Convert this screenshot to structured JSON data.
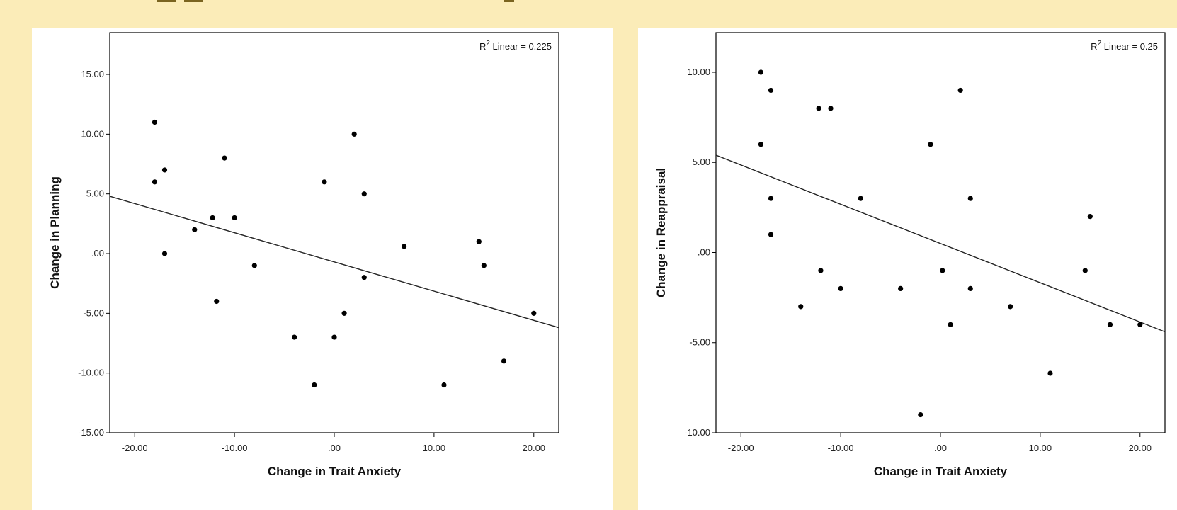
{
  "chart_data": [
    {
      "type": "scatter",
      "xlabel": "Change in Trait Anxiety",
      "ylabel": "Change in Planning",
      "xlim": [
        -22.5,
        22.5
      ],
      "ylim": [
        -15,
        18.5
      ],
      "x_ticks": [
        -20,
        -10,
        0,
        10,
        20
      ],
      "x_tick_labels": [
        "-20.00",
        "-10.00",
        ".00",
        "10.00",
        "20.00"
      ],
      "y_ticks": [
        -15,
        -10,
        -5,
        0,
        5,
        10,
        15
      ],
      "y_tick_labels": [
        "-15.00",
        "-10.00",
        "-5.00",
        ".00",
        "5.00",
        "10.00",
        "15.00"
      ],
      "annotation": {
        "prefix": "R",
        "sup": "2",
        "suffix": " Linear = 0.225"
      },
      "fit_line": {
        "x": [
          -22.5,
          22.5
        ],
        "y": [
          4.8,
          -6.2
        ]
      },
      "points": [
        {
          "x": -18,
          "y": 11
        },
        {
          "x": -18,
          "y": 6
        },
        {
          "x": -17,
          "y": 7
        },
        {
          "x": -17,
          "y": 0
        },
        {
          "x": -14,
          "y": 2
        },
        {
          "x": -12.2,
          "y": 3
        },
        {
          "x": -11.8,
          "y": -4
        },
        {
          "x": -11,
          "y": 8
        },
        {
          "x": -10,
          "y": 3
        },
        {
          "x": -8,
          "y": -1
        },
        {
          "x": -4,
          "y": -7
        },
        {
          "x": -2,
          "y": -11
        },
        {
          "x": -1,
          "y": 6
        },
        {
          "x": 0,
          "y": -7
        },
        {
          "x": 1,
          "y": -5
        },
        {
          "x": 2,
          "y": 10
        },
        {
          "x": 3,
          "y": 5
        },
        {
          "x": 3,
          "y": -2
        },
        {
          "x": 7,
          "y": 0.6
        },
        {
          "x": 11,
          "y": -11
        },
        {
          "x": 14.5,
          "y": 1
        },
        {
          "x": 15,
          "y": -1
        },
        {
          "x": 17,
          "y": -9
        },
        {
          "x": 20,
          "y": -5
        }
      ]
    },
    {
      "type": "scatter",
      "xlabel": "Change in Trait Anxiety",
      "ylabel": "Change in Reappraisal",
      "xlim": [
        -22.5,
        22.5
      ],
      "ylim": [
        -10,
        12.2
      ],
      "x_ticks": [
        -20,
        -10,
        0,
        10,
        20
      ],
      "x_tick_labels": [
        "-20.00",
        "-10.00",
        ".00",
        "10.00",
        "20.00"
      ],
      "y_ticks": [
        -10,
        -5,
        0,
        5,
        10
      ],
      "y_tick_labels": [
        "-10.00",
        "-5.00",
        ".00",
        "5.00",
        "10.00"
      ],
      "annotation": {
        "prefix": "R",
        "sup": "2",
        "suffix": " Linear = 0.25"
      },
      "fit_line": {
        "x": [
          -22.5,
          22.5
        ],
        "y": [
          5.4,
          -4.4
        ]
      },
      "points": [
        {
          "x": -18,
          "y": 10
        },
        {
          "x": -18,
          "y": 6
        },
        {
          "x": -17,
          "y": 9
        },
        {
          "x": -17,
          "y": 3
        },
        {
          "x": -17,
          "y": 1
        },
        {
          "x": -14,
          "y": -3
        },
        {
          "x": -12.2,
          "y": 8
        },
        {
          "x": -12,
          "y": -1
        },
        {
          "x": -11,
          "y": 8
        },
        {
          "x": -10,
          "y": -2
        },
        {
          "x": -8,
          "y": 3
        },
        {
          "x": -4,
          "y": -2
        },
        {
          "x": -2,
          "y": -9
        },
        {
          "x": -1,
          "y": 6
        },
        {
          "x": 0.2,
          "y": -1
        },
        {
          "x": 1,
          "y": -4
        },
        {
          "x": 2,
          "y": 9
        },
        {
          "x": 3,
          "y": 3
        },
        {
          "x": 3,
          "y": -2
        },
        {
          "x": 7,
          "y": -3
        },
        {
          "x": 11,
          "y": -6.7
        },
        {
          "x": 14.5,
          "y": -1
        },
        {
          "x": 15,
          "y": 2
        },
        {
          "x": 17,
          "y": -4
        },
        {
          "x": 20,
          "y": -4
        }
      ]
    }
  ]
}
